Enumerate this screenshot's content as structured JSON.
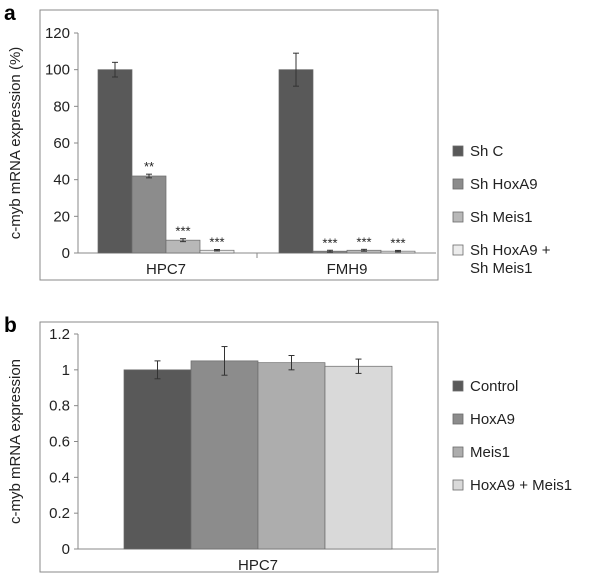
{
  "chart_data": [
    {
      "panel": "a",
      "type": "bar",
      "ylabel": "c-myb mRNA expression (%)",
      "ylim": [
        0,
        120
      ],
      "yticks": [
        "0",
        "20",
        "40",
        "60",
        "80",
        "100",
        "120"
      ],
      "categories": [
        "HPC7",
        "FMH9"
      ],
      "series": [
        {
          "name": "Sh C",
          "values": [
            100,
            100
          ],
          "errors": [
            4,
            9
          ],
          "labels": [
            "",
            ""
          ],
          "color": "#595959"
        },
        {
          "name": "Sh HoxA9",
          "values": [
            42,
            1
          ],
          "errors": [
            1,
            0.5
          ],
          "labels": [
            "**",
            "***"
          ],
          "color": "#8c8c8c"
        },
        {
          "name": "Sh Meis1",
          "values": [
            7,
            1.5
          ],
          "errors": [
            0.8,
            0.5
          ],
          "labels": [
            "***",
            "***"
          ],
          "color": "#b8b8b8"
        },
        {
          "name": "Sh HoxA9 + Sh Meis1",
          "legend_lines": [
            "Sh HoxA9 +",
            "Sh Meis1"
          ],
          "values": [
            1.5,
            1
          ],
          "errors": [
            0.4,
            0.4
          ],
          "labels": [
            "***",
            "***"
          ],
          "color": "#ececec"
        }
      ],
      "grid": false,
      "legend": "right"
    },
    {
      "panel": "b",
      "type": "bar",
      "ylabel": "c-myb mRNA expression",
      "ylim": [
        0,
        1.2
      ],
      "yticks": [
        "0",
        "0.2",
        "0.4",
        "0.6",
        "0.8",
        "1",
        "1.2"
      ],
      "categories": [
        "HPC7"
      ],
      "series": [
        {
          "name": "Control",
          "values": [
            1.0
          ],
          "errors": [
            0.05
          ],
          "color": "#595959"
        },
        {
          "name": "HoxA9",
          "values": [
            1.05
          ],
          "errors": [
            0.08
          ],
          "color": "#8c8c8c"
        },
        {
          "name": "Meis1",
          "values": [
            1.04
          ],
          "errors": [
            0.04
          ],
          "color": "#adadad"
        },
        {
          "name": "HoxA9 + Meis1",
          "values": [
            1.02
          ],
          "errors": [
            0.04
          ],
          "color": "#d9d9d9"
        }
      ],
      "grid": false,
      "legend": "right"
    }
  ]
}
